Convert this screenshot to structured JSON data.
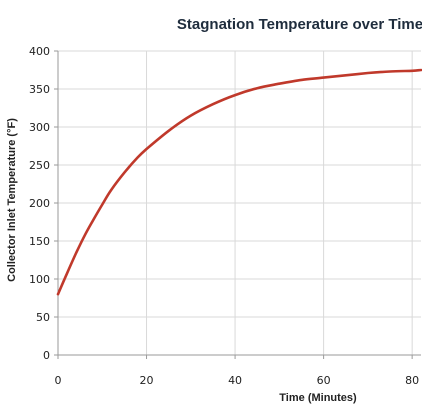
{
  "chart_data": {
    "type": "line",
    "title": "Stagnation Temperature over Time",
    "xlabel": "Time (Minutes)",
    "ylabel": "Collector Inlet Temperature (°F)",
    "xlim": [
      0,
      82
    ],
    "ylim": [
      0,
      400
    ],
    "xticks": [
      0,
      20,
      40,
      60,
      80
    ],
    "yticks": [
      0,
      50,
      100,
      150,
      200,
      250,
      300,
      350,
      400
    ],
    "grid": true,
    "legend": "none",
    "series": [
      {
        "color": "#c0392b",
        "x": [
          0,
          2,
          4,
          6,
          8,
          10,
          12,
          15,
          18,
          20,
          25,
          30,
          35,
          40,
          45,
          50,
          55,
          60,
          65,
          70,
          75,
          80,
          82
        ],
        "y": [
          80,
          107,
          133,
          157,
          178,
          198,
          217,
          240,
          260,
          271,
          295,
          315,
          330,
          342,
          351,
          357,
          362,
          365,
          368,
          371,
          373,
          374,
          375
        ]
      }
    ]
  }
}
